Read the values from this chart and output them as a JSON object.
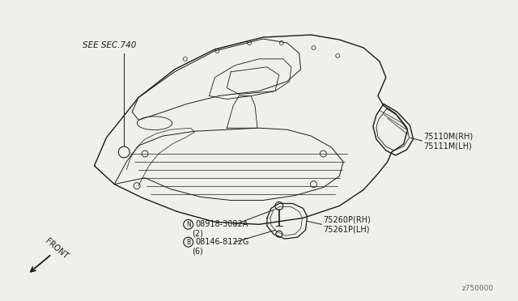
{
  "background_color": "#f0f0eb",
  "line_color": "#1a1a1a",
  "labels": {
    "see_sec": "SEE SEC.740",
    "part1a": "75110M(RH)",
    "part1b": "75111M(LH)",
    "part2a": "75260P(RH)",
    "part2b": "75261P(LH)",
    "bolt1_prefix": "N",
    "bolt1": "08918-3082A",
    "bolt1_qty": "(2)",
    "bolt2_prefix": "B",
    "bolt2": "08146-8122G",
    "bolt2_qty": "(6)",
    "front": "FRONT",
    "diagram_num": "z750000"
  },
  "figsize": [
    6.4,
    3.72
  ],
  "dpi": 100
}
